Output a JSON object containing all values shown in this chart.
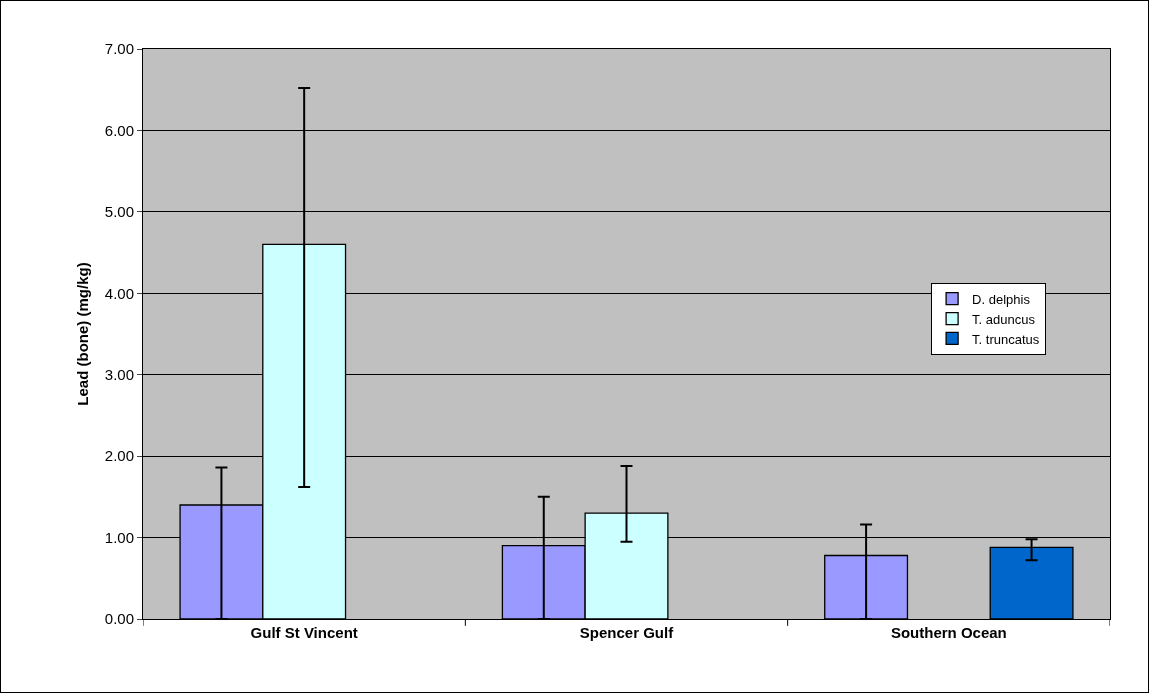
{
  "chart_data": {
    "type": "bar",
    "ylabel": "Lead (bone) (mg/kg)",
    "categories": [
      "Gulf St Vincent",
      "Spencer Gulf",
      "Southern Ocean"
    ],
    "series": [
      {
        "name": "D. delphis",
        "color": "#9999ff",
        "values": [
          1.4,
          0.9,
          0.78
        ],
        "errors": [
          [
            0,
            1.86
          ],
          [
            0,
            1.5
          ],
          [
            0,
            1.16
          ]
        ]
      },
      {
        "name": "T. aduncus",
        "color": "#ccffff",
        "values": [
          4.6,
          1.3,
          null
        ],
        "errors": [
          [
            1.62,
            6.52
          ],
          [
            0.95,
            1.88
          ],
          null
        ]
      },
      {
        "name": "T. truncatus",
        "color": "#0066cc",
        "values": [
          null,
          null,
          0.88
        ],
        "errors": [
          null,
          null,
          [
            0.72,
            0.98
          ]
        ]
      }
    ],
    "ylim": [
      0,
      7
    ],
    "yticks": [
      {
        "value": 0,
        "label": "0.00"
      },
      {
        "value": 1,
        "label": "1.00"
      },
      {
        "value": 2,
        "label": "2.00"
      },
      {
        "value": 3,
        "label": "3.00"
      },
      {
        "value": 4,
        "label": "4.00"
      },
      {
        "value": 5,
        "label": "5.00"
      },
      {
        "value": 6,
        "label": "6.00"
      },
      {
        "value": 7,
        "label": "7.00"
      }
    ],
    "grid": "y",
    "legend": "right"
  }
}
